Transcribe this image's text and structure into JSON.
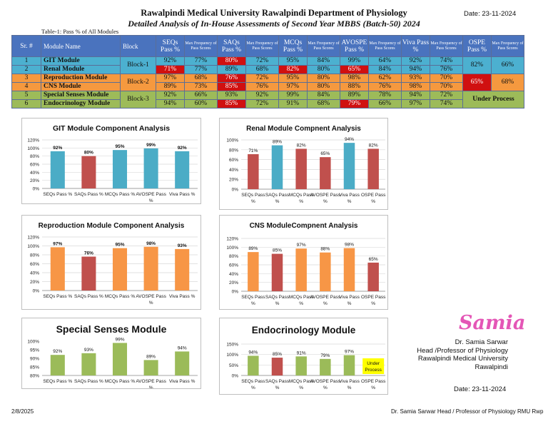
{
  "header": {
    "title": "Rawalpindi Medical University Rawalpindi Department of Physiology",
    "subtitle": "Detailed Analysis of In-House Assessments of Second Year MBBS (Batch-50) 2024",
    "date": "Date: 23-11-2024"
  },
  "table": {
    "caption": "Table-1: Pass % of All Modules",
    "headers": [
      "Sr. #",
      "Module Name",
      "Block",
      "SEQs Pass %",
      "Max Frequency of Pass Scores",
      "SAQs Pass %",
      "Max Frequency of Pass Scores",
      "MCQs Pass %",
      "Max Frequency of Pass Scores",
      "AVOSPE Pass %",
      "Max Frequency of Pass Scores",
      "Viva Pass %",
      "Max Frequency of Pass Scores",
      "OSPE Pass %",
      "Max Frequency of Pass Scores"
    ],
    "rows": [
      {
        "sr": "1",
        "name": "GIT Module",
        "cells": [
          "92%",
          "77%",
          "80%",
          "72%",
          "95%",
          "84%",
          "99%",
          "64%",
          "92%",
          "74%"
        ]
      },
      {
        "sr": "2",
        "name": "Renal Module",
        "cells": [
          "71%",
          "77%",
          "89%",
          "68%",
          "82%",
          "80%",
          "65%",
          "84%",
          "94%",
          "76%"
        ]
      },
      {
        "sr": "3",
        "name": "Reproduction Module",
        "cells": [
          "97%",
          "68%",
          "76%",
          "72%",
          "95%",
          "80%",
          "98%",
          "62%",
          "93%",
          "70%"
        ]
      },
      {
        "sr": "4",
        "name": "CNS Module",
        "cells": [
          "89%",
          "73%",
          "85%",
          "76%",
          "97%",
          "80%",
          "88%",
          "76%",
          "98%",
          "70%"
        ]
      },
      {
        "sr": "5",
        "name": "Special Senses Module",
        "cells": [
          "92%",
          "66%",
          "93%",
          "92%",
          "99%",
          "84%",
          "89%",
          "78%",
          "94%",
          "72%"
        ]
      },
      {
        "sr": "6",
        "name": "Endocrinology Module",
        "cells": [
          "94%",
          "60%",
          "85%",
          "72%",
          "91%",
          "68%",
          "79%",
          "66%",
          "97%",
          "74%"
        ]
      }
    ],
    "blocks": [
      "Block-1",
      "Block-2",
      "Block-3"
    ],
    "ospe": {
      "block1_pass": "82%",
      "block1_freq": "66%",
      "block2_pass": "65%",
      "block2_freq": "68%",
      "block3": "Under Process"
    },
    "highlight_color": "#d01010"
  },
  "chart_data": [
    {
      "type": "bar",
      "title": "GIT Module Component Analysis",
      "categories": [
        "SEQs Pass %",
        "SAQs Pass %",
        "MCQs Pass %",
        "AVOSPE Pass %",
        "Viva Pass %"
      ],
      "values": [
        92,
        80,
        95,
        99,
        92
      ],
      "colors": [
        "#4bacc6",
        "#c0504d",
        "#4bacc6",
        "#4bacc6",
        "#4bacc6"
      ],
      "ylim": [
        0,
        120
      ],
      "step": 20,
      "ticks": [
        "0%",
        "20%",
        "40%",
        "60%",
        "80%",
        "100%",
        "120%"
      ],
      "grid": true
    },
    {
      "type": "bar",
      "title": "Renal Module Compnent Analysis",
      "categories": [
        "SEQs Pass %",
        "SAQs Pass %",
        "MCQs Pass %",
        "AVOSPE Pass %",
        "Viva Pass %",
        "OSPE Pass %"
      ],
      "values": [
        71,
        89,
        82,
        65,
        94,
        82
      ],
      "colors": [
        "#c0504d",
        "#4bacc6",
        "#c0504d",
        "#c0504d",
        "#4bacc6",
        "#c0504d"
      ],
      "ylim": [
        0,
        100
      ],
      "step": 20,
      "ticks": [
        "0%",
        "20%",
        "40%",
        "60%",
        "80%",
        "100%"
      ],
      "grid": true
    },
    {
      "type": "bar",
      "title": "Reproduction Module Component Analysis",
      "categories": [
        "SEQs Pass %",
        "SAQs Pass %",
        "MCQs Pass %",
        "AVOSPE Pass %",
        "Viva Pass %"
      ],
      "values": [
        97,
        76,
        95,
        98,
        93
      ],
      "colors": [
        "#f79646",
        "#c0504d",
        "#f79646",
        "#f79646",
        "#f79646"
      ],
      "ylim": [
        0,
        120
      ],
      "step": 20,
      "ticks": [
        "0%",
        "20%",
        "40%",
        "60%",
        "80%",
        "100%",
        "120%"
      ],
      "grid": true
    },
    {
      "type": "bar",
      "title": "CNS ModuleCompnent Analysis",
      "categories": [
        "SEQs Pass %",
        "SAQs Pass %",
        "MCQs Pass %",
        "AVOSPE Pass %",
        "Viva Pass %",
        "OSPE Pass %"
      ],
      "values": [
        89,
        85,
        97,
        88,
        98,
        65
      ],
      "colors": [
        "#f79646",
        "#c0504d",
        "#f79646",
        "#f79646",
        "#f79646",
        "#c0504d"
      ],
      "ylim": [
        0,
        120
      ],
      "step": 20,
      "ticks": [
        "0%",
        "20%",
        "40%",
        "60%",
        "80%",
        "100%",
        "120%"
      ],
      "grid": true
    },
    {
      "type": "bar",
      "title": "Special Senses Module",
      "categories": [
        "SEQs Pass %",
        "SAQs Pass %",
        "MCQs Pass %",
        "AVOSPE Pass %",
        "Viva Pass %"
      ],
      "values": [
        92,
        93,
        99,
        89,
        94
      ],
      "colors": [
        "#9bbb59",
        "#9bbb59",
        "#9bbb59",
        "#9bbb59",
        "#9bbb59"
      ],
      "ylim": [
        80,
        100
      ],
      "step": 5,
      "ticks": [
        "80%",
        "85%",
        "90%",
        "95%",
        "100%"
      ],
      "grid": false
    },
    {
      "type": "bar",
      "title": "Endocrinology Module",
      "categories": [
        "SEQs Pass %",
        "SAQs Pass %",
        "MCQs Pass %",
        "AVOSPE Pass %",
        "Viva Pass %",
        "OSPE Pass %"
      ],
      "values": [
        94,
        85,
        91,
        79,
        97,
        null
      ],
      "colors": [
        "#9bbb59",
        "#c0504d",
        "#9bbb59",
        "#9bbb59",
        "#9bbb59",
        "#9bbb59"
      ],
      "ylim": [
        0,
        150
      ],
      "step": 50,
      "ticks": [
        "0%",
        "50%",
        "100%",
        "150%"
      ],
      "grid": true,
      "annotation": "Under Process"
    }
  ],
  "signature": {
    "mark": "Samia",
    "name": "Dr. Samia Sarwar",
    "role": "Head /Professor of Physiology",
    "org": "Rawalpindi Medical University",
    "city": "Rawalpindi",
    "date": "Date: 23-11-2024"
  },
  "footer": {
    "left": "2/8/2025",
    "right": "Dr. Samia Sarwar Head / Professor of Physiology RMU Rwp"
  }
}
